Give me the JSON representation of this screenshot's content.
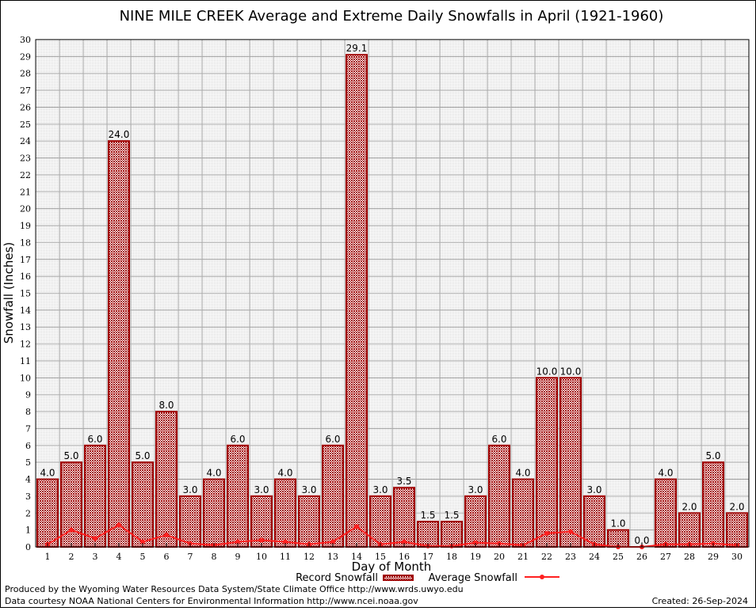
{
  "chart_data": {
    "type": "bar",
    "title": "NINE MILE CREEK Average and Extreme Daily Snowfalls in April (1921-1960)",
    "xlabel": "Day of Month",
    "ylabel": "Snowfall (Inches)",
    "ylim": [
      0,
      30
    ],
    "grid": true,
    "legend_placement": "bottom",
    "categories": [
      "1",
      "2",
      "3",
      "4",
      "5",
      "6",
      "7",
      "8",
      "9",
      "10",
      "11",
      "12",
      "13",
      "14",
      "15",
      "16",
      "17",
      "18",
      "19",
      "20",
      "21",
      "22",
      "23",
      "24",
      "25",
      "26",
      "27",
      "28",
      "29",
      "30"
    ],
    "yticks": [
      "0",
      "1",
      "2",
      "3",
      "4",
      "5",
      "6",
      "7",
      "8",
      "9",
      "10",
      "11",
      "12",
      "13",
      "14",
      "15",
      "16",
      "17",
      "18",
      "19",
      "20",
      "21",
      "22",
      "23",
      "24",
      "25",
      "26",
      "27",
      "28",
      "29",
      "30"
    ],
    "series": [
      {
        "name": "Record Snowfall",
        "kind": "bar",
        "color": "#a00000",
        "values": [
          4.0,
          5.0,
          6.0,
          24.0,
          5.0,
          8.0,
          3.0,
          4.0,
          6.0,
          3.0,
          4.0,
          3.0,
          6.0,
          29.1,
          3.0,
          3.5,
          1.5,
          1.5,
          3.0,
          6.0,
          4.0,
          10.0,
          10.0,
          3.0,
          1.0,
          0.0,
          4.0,
          2.0,
          5.0,
          2.0
        ],
        "labels": [
          "4.0",
          "5.0",
          "6.0",
          "24.0",
          "5.0",
          "8.0",
          "3.0",
          "4.0",
          "6.0",
          "3.0",
          "4.0",
          "3.0",
          "6.0",
          "29.1",
          "3.0",
          "3.5",
          "1.5",
          "1.5",
          "3.0",
          "6.0",
          "4.0",
          "10.0",
          "10.0",
          "3.0",
          "1.0",
          "0.0",
          "4.0",
          "2.0",
          "5.0",
          "2.0"
        ]
      },
      {
        "name": "Average Snowfall",
        "kind": "line",
        "color": "#ff2020",
        "values": [
          0.15,
          1.0,
          0.5,
          1.3,
          0.3,
          0.7,
          0.2,
          0.1,
          0.3,
          0.4,
          0.3,
          0.15,
          0.3,
          1.2,
          0.15,
          0.3,
          0.05,
          0.05,
          0.25,
          0.2,
          0.1,
          0.8,
          0.9,
          0.15,
          0.0,
          0.0,
          0.15,
          0.15,
          0.2,
          0.1
        ]
      }
    ]
  },
  "footer": {
    "credit1": "Produced by the Wyoming Water Resources Data System/State Climate Office http://www.wrds.uwyo.edu",
    "credit2": "Data courtesy NOAA National Centers for Environmental Information http://www.ncei.noaa.gov",
    "created": "Created: 26-Sep-2024"
  }
}
